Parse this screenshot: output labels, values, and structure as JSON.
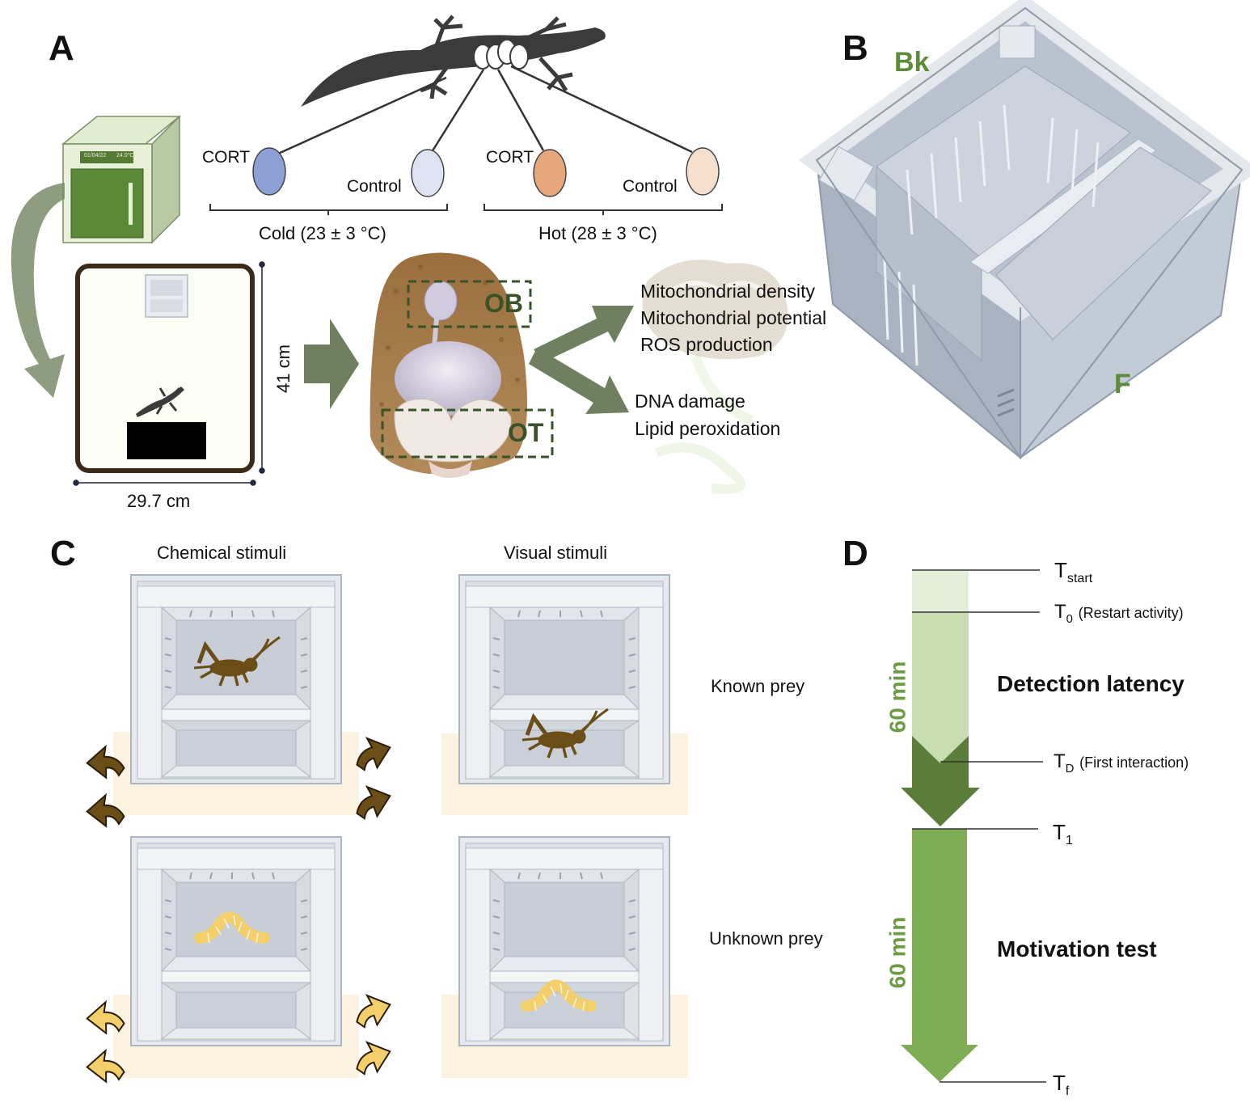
{
  "panels": {
    "a": "A",
    "b": "B",
    "c": "C",
    "d": "D"
  },
  "panel_a": {
    "incubator_date": "01/04/22",
    "incubator_temp": "24.0°C",
    "groups": [
      {
        "treatment": "CORT",
        "color": "#8da1d6"
      },
      {
        "treatment": "Control",
        "color": "#dde3f3"
      },
      {
        "treatment": "CORT",
        "color": "#e6a77d"
      },
      {
        "treatment": "Control",
        "color": "#f6dfcc"
      }
    ],
    "cold_label": "Cold (23 ± 3 °C)",
    "hot_label": "Hot (28 ± 3 °C)",
    "height_label": "41 cm",
    "width_label": "29.7 cm",
    "ob_label": "OB",
    "ot_label": "OT",
    "ob_measures": [
      "Mitochondrial density",
      "Mitochondrial potential",
      "ROS production"
    ],
    "ot_measures": [
      "DNA damage",
      "Lipid peroxidation"
    ]
  },
  "panel_b": {
    "back_label": "Bk",
    "front_label": "F"
  },
  "panel_c": {
    "col_chemical": "Chemical stimuli",
    "col_visual": "Visual stimuli",
    "row_known": "Known prey",
    "row_unknown": "Unknown prey"
  },
  "panel_d": {
    "t_start": "T",
    "t_start_sub": "start",
    "t0": "T",
    "t0_sub": "0",
    "t0_note": "(Restart activity)",
    "td": "T",
    "td_sub": "D",
    "td_note": "(First interaction)",
    "t1": "T",
    "t1_sub": "1",
    "tf": "T",
    "tf_sub": "f",
    "duration_1": "60 min",
    "duration_2": "60 min",
    "phase_1": "Detection latency",
    "phase_2": "Motivation test"
  },
  "colors": {
    "arrow_gray_green": "#6f7f5f",
    "dark_green": "#5b7d3a",
    "mid_green": "#7ead55",
    "light_green": "#c8deb2",
    "pale_green": "#e3efd9",
    "cricket_brown": "#6b4d17",
    "worm_yellow": "#f2cf6a",
    "sand": "#fbf3df"
  }
}
